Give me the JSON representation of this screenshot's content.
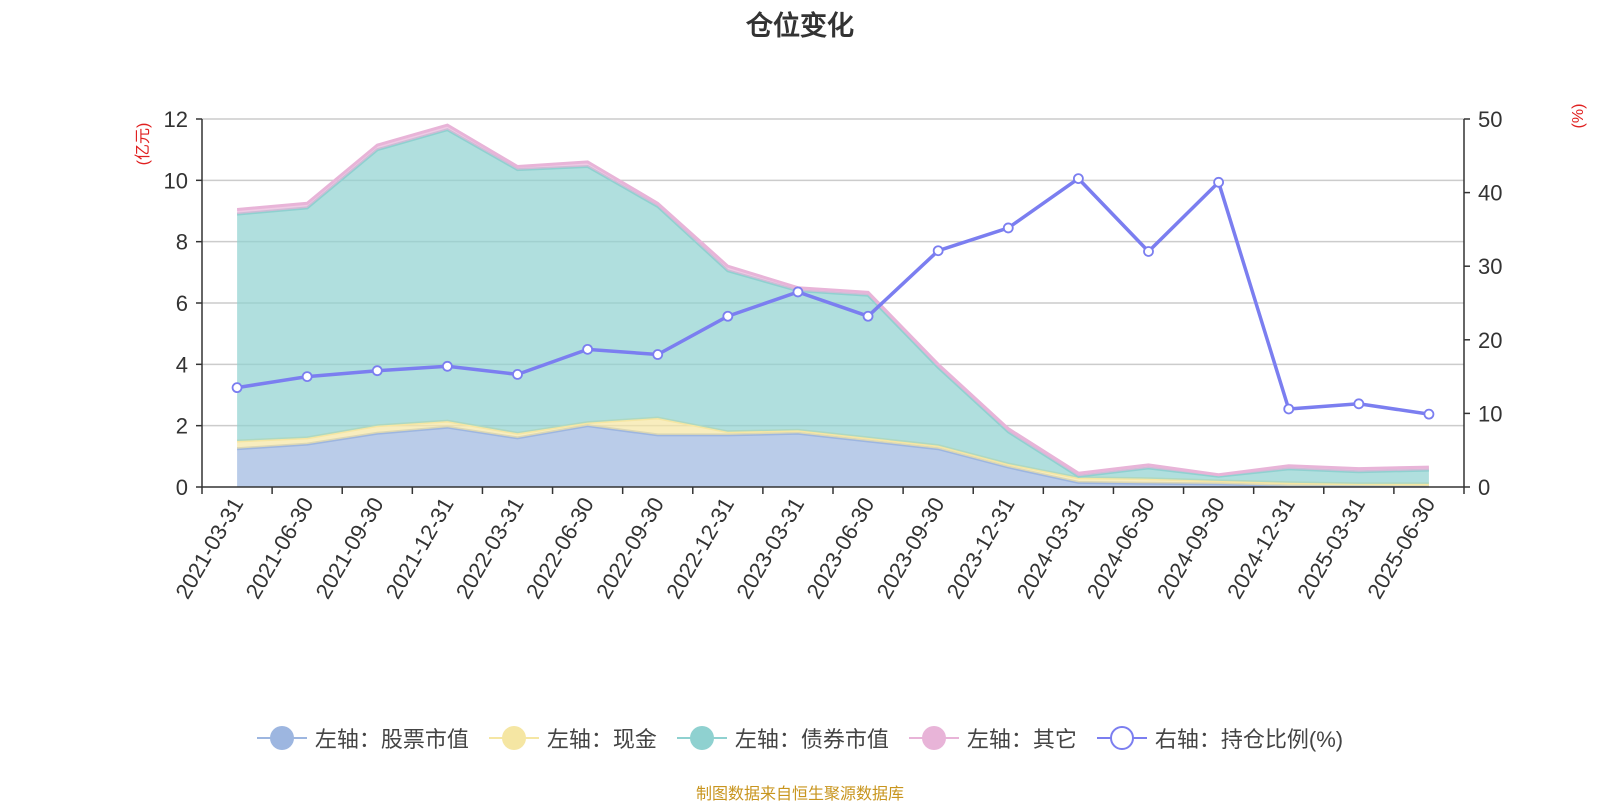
{
  "title": "仓位变化",
  "source_note": "制图数据来自恒生聚源数据库",
  "chart_data": {
    "type": "area",
    "title": "仓位变化",
    "categories": [
      "2021-03-31",
      "2021-06-30",
      "2021-09-30",
      "2021-12-31",
      "2022-03-31",
      "2022-06-30",
      "2022-09-30",
      "2022-12-31",
      "2023-03-31",
      "2023-06-30",
      "2023-09-30",
      "2023-12-31",
      "2024-03-31",
      "2024-06-30",
      "2024-09-30",
      "2024-12-31",
      "2025-03-31",
      "2025-06-30"
    ],
    "left_axis": {
      "unit_label": "(亿元)",
      "ylim": [
        0,
        12
      ],
      "ticks": [
        0,
        2,
        4,
        6,
        8,
        10,
        12
      ]
    },
    "right_axis": {
      "unit_label": "(%)",
      "ylim": [
        0,
        50
      ],
      "ticks": [
        0,
        10,
        20,
        30,
        40,
        50
      ]
    },
    "grid": true,
    "legend_position": "bottom",
    "series": [
      {
        "name": "左轴：股票市值",
        "axis": "left",
        "kind": "stacked-area",
        "color": "#9db6e0",
        "values": [
          1.25,
          1.4,
          1.75,
          1.95,
          1.6,
          2.0,
          1.7,
          1.7,
          1.75,
          1.5,
          1.25,
          0.65,
          0.15,
          0.12,
          0.1,
          0.04,
          0.04,
          0.03
        ]
      },
      {
        "name": "左轴：现金",
        "axis": "left",
        "kind": "stacked-area",
        "color": "#f5e6a3",
        "values": [
          0.25,
          0.2,
          0.25,
          0.2,
          0.15,
          0.1,
          0.55,
          0.1,
          0.1,
          0.1,
          0.1,
          0.1,
          0.15,
          0.15,
          0.1,
          0.1,
          0.06,
          0.07
        ]
      },
      {
        "name": "左轴：债券市值",
        "axis": "left",
        "kind": "stacked-area",
        "color": "#8fd1d0",
        "values": [
          7.4,
          7.5,
          9.0,
          9.5,
          8.6,
          8.35,
          6.9,
          5.25,
          4.55,
          4.65,
          2.55,
          1.05,
          0.05,
          0.35,
          0.15,
          0.45,
          0.4,
          0.45
        ]
      },
      {
        "name": "左轴：其它",
        "axis": "left",
        "kind": "stacked-area",
        "color": "#e8b4d8",
        "values": [
          0.15,
          0.15,
          0.15,
          0.15,
          0.1,
          0.15,
          0.1,
          0.15,
          0.1,
          0.1,
          0.1,
          0.1,
          0.1,
          0.1,
          0.05,
          0.1,
          0.1,
          0.1
        ]
      },
      {
        "name": "右轴：持仓比例(%)",
        "axis": "right",
        "kind": "line",
        "color": "#7b7ef0",
        "values": [
          13.5,
          15.0,
          15.8,
          16.4,
          15.3,
          18.7,
          18.0,
          23.2,
          26.5,
          23.2,
          32.1,
          35.2,
          41.9,
          32.0,
          41.4,
          10.6,
          11.3,
          9.9
        ]
      }
    ]
  }
}
